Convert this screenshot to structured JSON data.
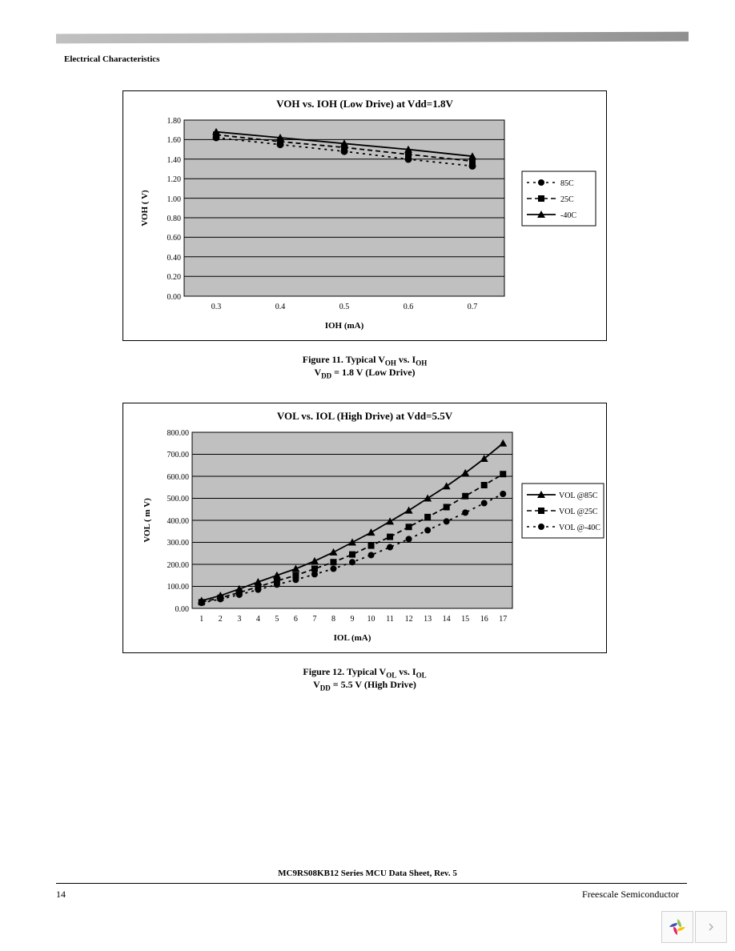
{
  "section_title": "Electrical Characteristics",
  "chart1": {
    "type": "line",
    "title": "VOH vs. IOH (Low Drive) at Vdd=1.8V",
    "title_fontsize": 13,
    "ylabel": "VOH ( V)",
    "xlabel": "IOH (mA)",
    "label_fontsize": 11,
    "background_color": "#c0c0c0",
    "plot_background": "#ffffff",
    "grid_color": "#000000",
    "ylim": [
      0.0,
      1.8
    ],
    "ytick_step": 0.2,
    "yticks": [
      "0.00",
      "0.20",
      "0.40",
      "0.60",
      "0.80",
      "1.00",
      "1.20",
      "1.40",
      "1.60",
      "1.80"
    ],
    "xticks": [
      "0.3",
      "0.4",
      "0.5",
      "0.6",
      "0.7"
    ],
    "series": [
      {
        "label": "85C",
        "marker": "circle",
        "dash": "dash",
        "color": "#000000",
        "values": [
          1.62,
          1.55,
          1.48,
          1.4,
          1.33
        ]
      },
      {
        "label": "25C",
        "marker": "square",
        "dash": "dash",
        "color": "#000000",
        "values": [
          1.65,
          1.58,
          1.52,
          1.45,
          1.38
        ]
      },
      {
        "label": "-40C",
        "marker": "triangle",
        "dash": "solid",
        "color": "#000000",
        "values": [
          1.68,
          1.62,
          1.56,
          1.5,
          1.43
        ]
      }
    ],
    "legend_items": [
      "85C",
      "25C",
      "-40C"
    ],
    "line_width": 1.5,
    "marker_size": 7
  },
  "caption1_a": "Figure 11. Typical V",
  "caption1_sub1": "OH",
  "caption1_b": " vs. I",
  "caption1_sub2": "OH",
  "caption1_line2a": "V",
  "caption1_line2sub": "DD",
  "caption1_line2b": " = 1.8 V (Low Drive)",
  "chart2": {
    "type": "line",
    "title": "VOL vs. IOL (High Drive) at Vdd=5.5V",
    "title_fontsize": 13,
    "ylabel": "VOL ( m V)",
    "xlabel": "IOL (mA)",
    "label_fontsize": 11,
    "background_color": "#c0c0c0",
    "plot_background": "#ffffff",
    "grid_color": "#000000",
    "ylim": [
      0.0,
      800.0
    ],
    "ytick_step": 100.0,
    "yticks": [
      "0.00",
      "100.00",
      "200.00",
      "300.00",
      "400.00",
      "500.00",
      "600.00",
      "700.00",
      "800.00"
    ],
    "xticks": [
      "1",
      "2",
      "3",
      "4",
      "5",
      "6",
      "7",
      "8",
      "9",
      "10",
      "11",
      "12",
      "13",
      "14",
      "15",
      "16",
      "17"
    ],
    "series": [
      {
        "label": "VOL @85C",
        "marker": "triangle",
        "dash": "solid",
        "color": "#000000",
        "values": [
          35,
          58,
          88,
          120,
          150,
          180,
          215,
          255,
          300,
          345,
          395,
          445,
          500,
          555,
          615,
          680,
          750
        ]
      },
      {
        "label": "VOL @25C",
        "marker": "square",
        "dash": "dash",
        "color": "#000000",
        "values": [
          28,
          48,
          72,
          98,
          125,
          150,
          180,
          210,
          245,
          285,
          325,
          370,
          415,
          460,
          510,
          560,
          610
        ]
      },
      {
        "label": "VOL @-40C",
        "marker": "circle",
        "dash": "dash",
        "color": "#000000",
        "values": [
          25,
          42,
          62,
          85,
          108,
          130,
          155,
          180,
          210,
          242,
          278,
          315,
          355,
          395,
          435,
          478,
          520
        ]
      }
    ],
    "legend_items": [
      "VOL @85C",
      "VOL @25C",
      "VOL @-40C"
    ],
    "line_width": 1.5,
    "marker_size": 7
  },
  "caption2_a": "Figure 12. Typical V",
  "caption2_sub1": "OL",
  "caption2_b": " vs. I",
  "caption2_sub2": "OL",
  "caption2_line2a": "V",
  "caption2_line2sub": "DD",
  "caption2_line2b": " = 5.5 V (High Drive)",
  "footer_center": "MC9RS08KB12 Series MCU Data Sheet, Rev. 5",
  "page_number": "14",
  "footer_right": "Freescale Semiconductor"
}
